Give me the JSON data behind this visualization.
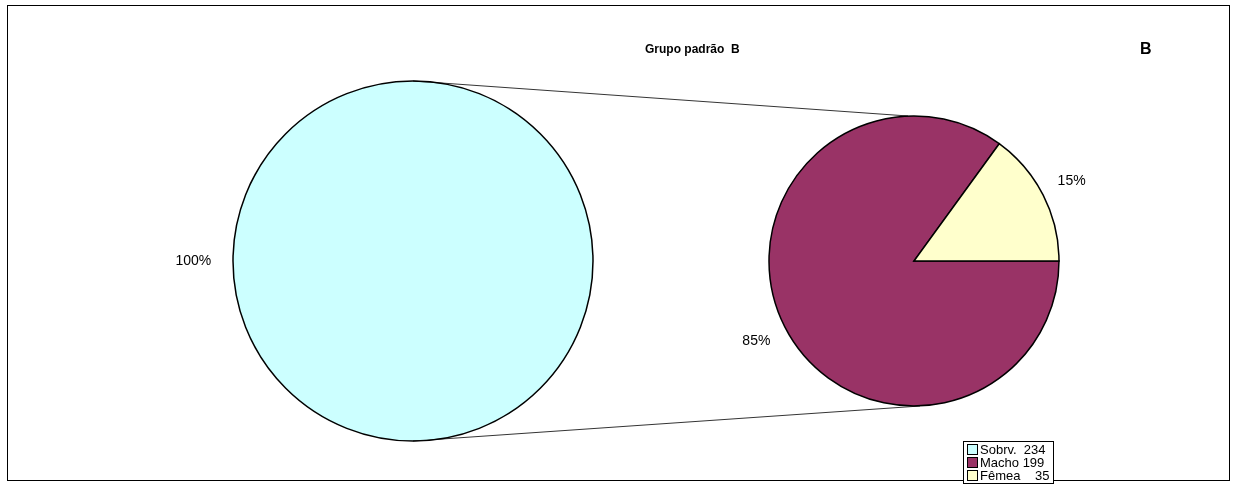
{
  "chart_data": [
    {
      "type": "pie",
      "title": "Grupo padrão  B",
      "annotations": [
        "B"
      ],
      "categories": [
        "Sobrv.  234"
      ],
      "values": [
        100
      ],
      "colors": [
        "#ccffff"
      ],
      "value_labels": [
        "100%"
      ],
      "legend": "bottom right"
    },
    {
      "type": "pie",
      "categories": [
        "Macho 199",
        "Fêmea    35"
      ],
      "values": [
        85,
        15
      ],
      "colors": [
        "#993366",
        "#ffffcc"
      ],
      "value_labels": [
        "85%",
        "15%"
      ],
      "legend": "bottom right"
    }
  ]
}
